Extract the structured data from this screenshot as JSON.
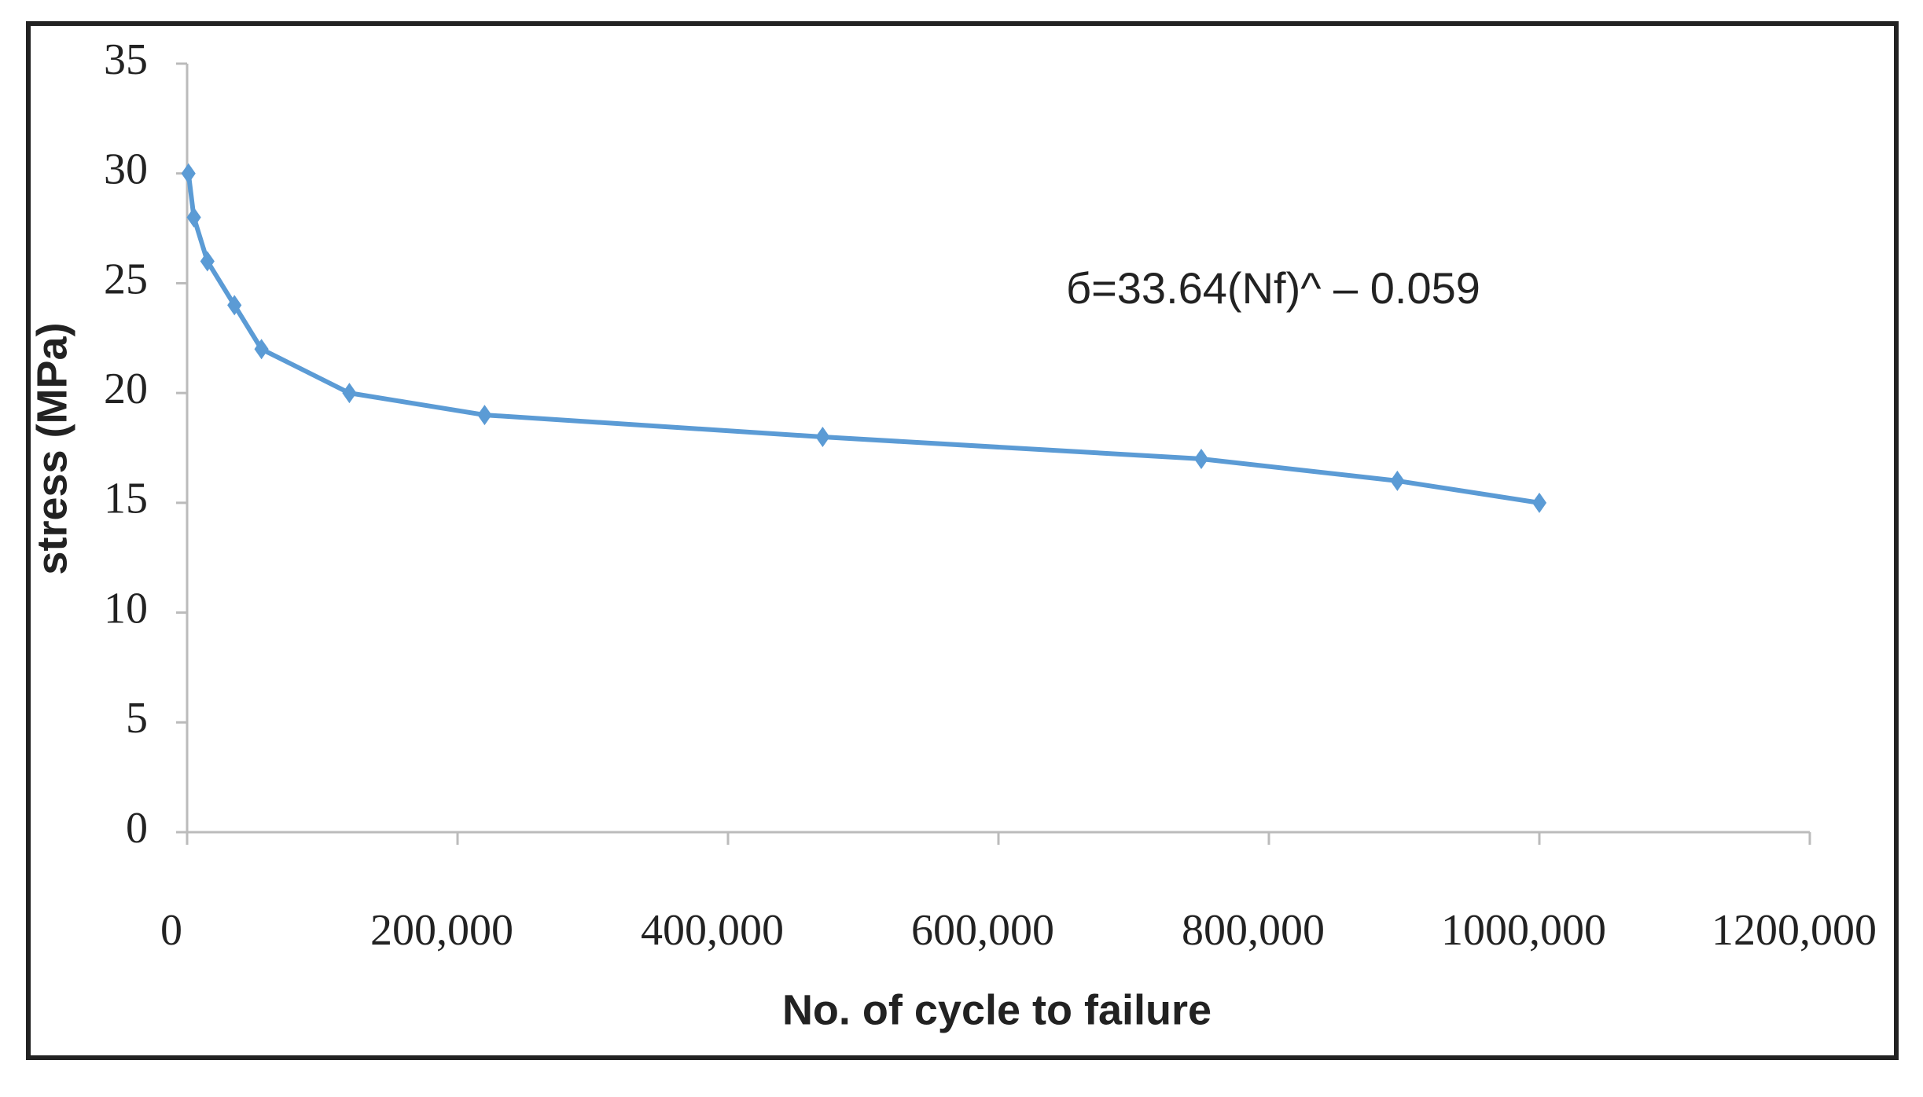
{
  "chart_data": {
    "type": "line",
    "title_y": "stress (MPa)",
    "xlabel": "No. of cycle to failure",
    "annotation": "б=33.64(Nf)^ – 0.059",
    "x": [
      1000,
      5000,
      15000,
      35000,
      55000,
      120000,
      220000,
      470000,
      750000,
      895000,
      1000000
    ],
    "series": [
      {
        "name": "stress",
        "color": "#5b9bd5",
        "values": [
          30,
          28,
          26,
          24,
          22,
          20,
          19,
          18,
          17,
          16,
          15
        ]
      }
    ],
    "xlim": [
      0,
      1200000
    ],
    "xticks": [
      0,
      {
        "value": 200000,
        "label": "200,000"
      },
      {
        "value": 400000,
        "label": "400,000"
      },
      {
        "value": 600000,
        "label": "600,000"
      },
      {
        "value": 800000,
        "label": "800,000"
      },
      {
        "value": 1000000,
        "label": "1000,000"
      },
      {
        "value": 1200000,
        "label": "1200,000"
      }
    ],
    "ylim": [
      0,
      35
    ],
    "yticks": [
      0,
      5,
      10,
      15,
      20,
      25,
      30,
      35
    ]
  }
}
